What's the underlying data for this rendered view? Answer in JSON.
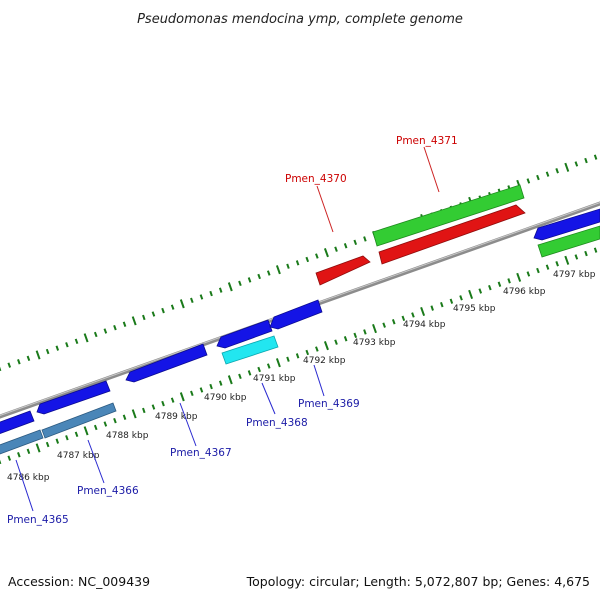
{
  "title": "Pseudomonas mendocina ymp, complete genome",
  "footer": {
    "accession": "Accession: NC_009439",
    "summary": "Topology: circular; Length: 5,072,807 bp; Genes: 4,675"
  },
  "colors": {
    "backbone": "#8c8c8c",
    "tick": "#1a7a1a",
    "label_blue": "#1a1aa6",
    "label_red": "#cc0000",
    "leader_blue": "#2a2ad0",
    "leader_red": "#cc2222"
  },
  "scale_ticks": [
    "4786 kbp",
    "4787 kbp",
    "4788 kbp",
    "4789 kbp",
    "4790 kbp",
    "4791 kbp",
    "4792 kbp",
    "4793 kbp",
    "4794 kbp",
    "4795 kbp",
    "4796 kbp",
    "4797 kbp"
  ],
  "genes": [
    {
      "label": "Pmen_4365",
      "color": "#1a1aa6",
      "fill": "#1414e6",
      "strand": "reverse"
    },
    {
      "label": "Pmen_4366",
      "color": "#1a1aa6",
      "fill": "#4a86b8",
      "strand": "reverse"
    },
    {
      "label": "Pmen_4367",
      "color": "#1a1aa6",
      "fill": "#1414e6",
      "strand": "reverse"
    },
    {
      "label": "Pmen_4368",
      "color": "#1a1aa6",
      "fill": "#22e6f0",
      "strand": "forward"
    },
    {
      "label": "Pmen_4369",
      "color": "#1a1aa6",
      "fill": "#1414e6",
      "strand": "reverse"
    },
    {
      "label": "Pmen_4370",
      "color": "#cc0000",
      "fill": "#e01414",
      "strand": "forward"
    },
    {
      "label": "Pmen_4371",
      "color": "#cc0000",
      "fill": "#e01414",
      "strand": "forward"
    }
  ]
}
